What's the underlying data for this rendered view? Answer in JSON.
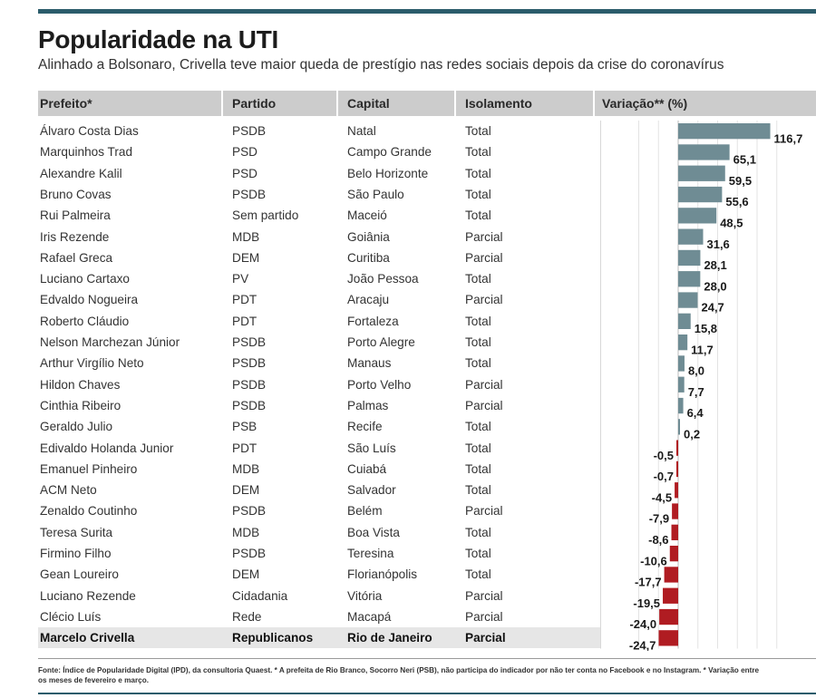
{
  "title": "Popularidade na UTI",
  "subtitle": "Alinhado a Bolsonaro, Crivella teve maior queda de prestígio nas redes sociais depois da crise do coronavírus",
  "headers": {
    "prefeito": "Prefeito*",
    "partido": "Partido",
    "capital": "Capital",
    "isolamento": "Isolamento",
    "variacao": "Variação** (%)"
  },
  "colors": {
    "positive": "#6f8c94",
    "negative": "#b01c22",
    "header_bg": "#cccccc",
    "accent": "#2b5c6b"
  },
  "chart_data": {
    "type": "bar",
    "orientation": "horizontal",
    "categories": [
      "Álvaro Costa Dias",
      "Marquinhos Trad",
      "Alexandre Kalil",
      "Bruno Covas",
      "Rui Palmeira",
      "Iris Rezende",
      "Rafael Greca",
      "Luciano Cartaxo",
      "Edvaldo Nogueira",
      "Roberto Cláudio",
      "Nelson Marchezan Júnior",
      "Arthur Virgílio Neto",
      "Hildon Chaves",
      "Cinthia Ribeiro",
      "Geraldo Julio",
      "Edivaldo Holanda Junior",
      "Emanuel Pinheiro",
      "ACM Neto",
      "Zenaldo Coutinho",
      "Teresa Surita",
      "Firmino Filho",
      "Gean Loureiro",
      "Luciano Rezende",
      "Clécio Luís",
      "Marcelo Crivella"
    ],
    "values": [
      116.7,
      65.1,
      59.5,
      55.6,
      48.5,
      31.6,
      28.1,
      28.0,
      24.7,
      15.8,
      11.7,
      8.0,
      7.7,
      6.4,
      0.2,
      -0.5,
      -0.7,
      -4.5,
      -7.9,
      -8.6,
      -10.6,
      -17.7,
      -19.5,
      -24.0,
      -24.7
    ],
    "labels": [
      "116,7",
      "65,1",
      "59,5",
      "55,6",
      "48,5",
      "31,6",
      "28,1",
      "28,0",
      "24,7",
      "15,8",
      "11,7",
      "8,0",
      "7,7",
      "6,4",
      "0,2",
      "-0,5",
      "-0,7",
      "-4,5",
      "-7,9",
      "-8,6",
      "-10,6",
      "-17,7",
      "-19,5",
      "-24,0",
      "-24,7"
    ],
    "xlim": [
      -60,
      125
    ],
    "grid": true,
    "ylabel": "Variação** (%)"
  },
  "rows": [
    {
      "prefeito": "Álvaro Costa Dias",
      "partido": "PSDB",
      "capital": "Natal",
      "isolamento": "Total"
    },
    {
      "prefeito": "Marquinhos Trad",
      "partido": "PSD",
      "capital": "Campo Grande",
      "isolamento": "Total"
    },
    {
      "prefeito": "Alexandre Kalil",
      "partido": "PSD",
      "capital": "Belo Horizonte",
      "isolamento": "Total"
    },
    {
      "prefeito": "Bruno Covas",
      "partido": "PSDB",
      "capital": "São Paulo",
      "isolamento": "Total"
    },
    {
      "prefeito": "Rui Palmeira",
      "partido": "Sem partido",
      "capital": "Maceió",
      "isolamento": "Total"
    },
    {
      "prefeito": "Iris Rezende",
      "partido": "MDB",
      "capital": "Goiânia",
      "isolamento": "Parcial"
    },
    {
      "prefeito": "Rafael Greca",
      "partido": "DEM",
      "capital": "Curitiba",
      "isolamento": "Parcial"
    },
    {
      "prefeito": "Luciano Cartaxo",
      "partido": "PV",
      "capital": "João Pessoa",
      "isolamento": "Total"
    },
    {
      "prefeito": "Edvaldo Nogueira",
      "partido": "PDT",
      "capital": "Aracaju",
      "isolamento": "Parcial"
    },
    {
      "prefeito": "Roberto Cláudio",
      "partido": "PDT",
      "capital": "Fortaleza",
      "isolamento": "Total"
    },
    {
      "prefeito": "Nelson Marchezan Júnior",
      "partido": "PSDB",
      "capital": "Porto Alegre",
      "isolamento": "Total"
    },
    {
      "prefeito": "Arthur Virgílio Neto",
      "partido": "PSDB",
      "capital": "Manaus",
      "isolamento": "Total"
    },
    {
      "prefeito": "Hildon Chaves",
      "partido": "PSDB",
      "capital": "Porto Velho",
      "isolamento": "Parcial"
    },
    {
      "prefeito": "Cinthia Ribeiro",
      "partido": "PSDB",
      "capital": "Palmas",
      "isolamento": "Parcial"
    },
    {
      "prefeito": "Geraldo Julio",
      "partido": "PSB",
      "capital": "Recife",
      "isolamento": "Total"
    },
    {
      "prefeito": "Edivaldo Holanda Junior",
      "partido": "PDT",
      "capital": "São Luís",
      "isolamento": "Total"
    },
    {
      "prefeito": "Emanuel Pinheiro",
      "partido": "MDB",
      "capital": "Cuiabá",
      "isolamento": "Total"
    },
    {
      "prefeito": "ACM Neto",
      "partido": "DEM",
      "capital": "Salvador",
      "isolamento": "Total"
    },
    {
      "prefeito": "Zenaldo Coutinho",
      "partido": "PSDB",
      "capital": "Belém",
      "isolamento": "Parcial"
    },
    {
      "prefeito": "Teresa Surita",
      "partido": "MDB",
      "capital": "Boa Vista",
      "isolamento": "Total"
    },
    {
      "prefeito": "Firmino Filho",
      "partido": "PSDB",
      "capital": "Teresina",
      "isolamento": "Total"
    },
    {
      "prefeito": "Gean Loureiro",
      "partido": "DEM",
      "capital": "Florianópolis",
      "isolamento": "Total"
    },
    {
      "prefeito": "Luciano Rezende",
      "partido": "Cidadania",
      "capital": "Vitória",
      "isolamento": "Parcial"
    },
    {
      "prefeito": "Clécio Luís",
      "partido": "Rede",
      "capital": "Macapá",
      "isolamento": "Parcial"
    },
    {
      "prefeito": "Marcelo Crivella",
      "partido": "Republicanos",
      "capital": "Rio de Janeiro",
      "isolamento": "Parcial",
      "highlight": true
    }
  ],
  "footnote": "Fonte: Índice de Popularidade Digital (IPD), da consultoria Quaest. * A prefeita de Rio Branco, Socorro Neri (PSB), não participa do indicador por não ter conta no Facebook e no Instagram. * Variação entre os meses de fevereiro e março."
}
